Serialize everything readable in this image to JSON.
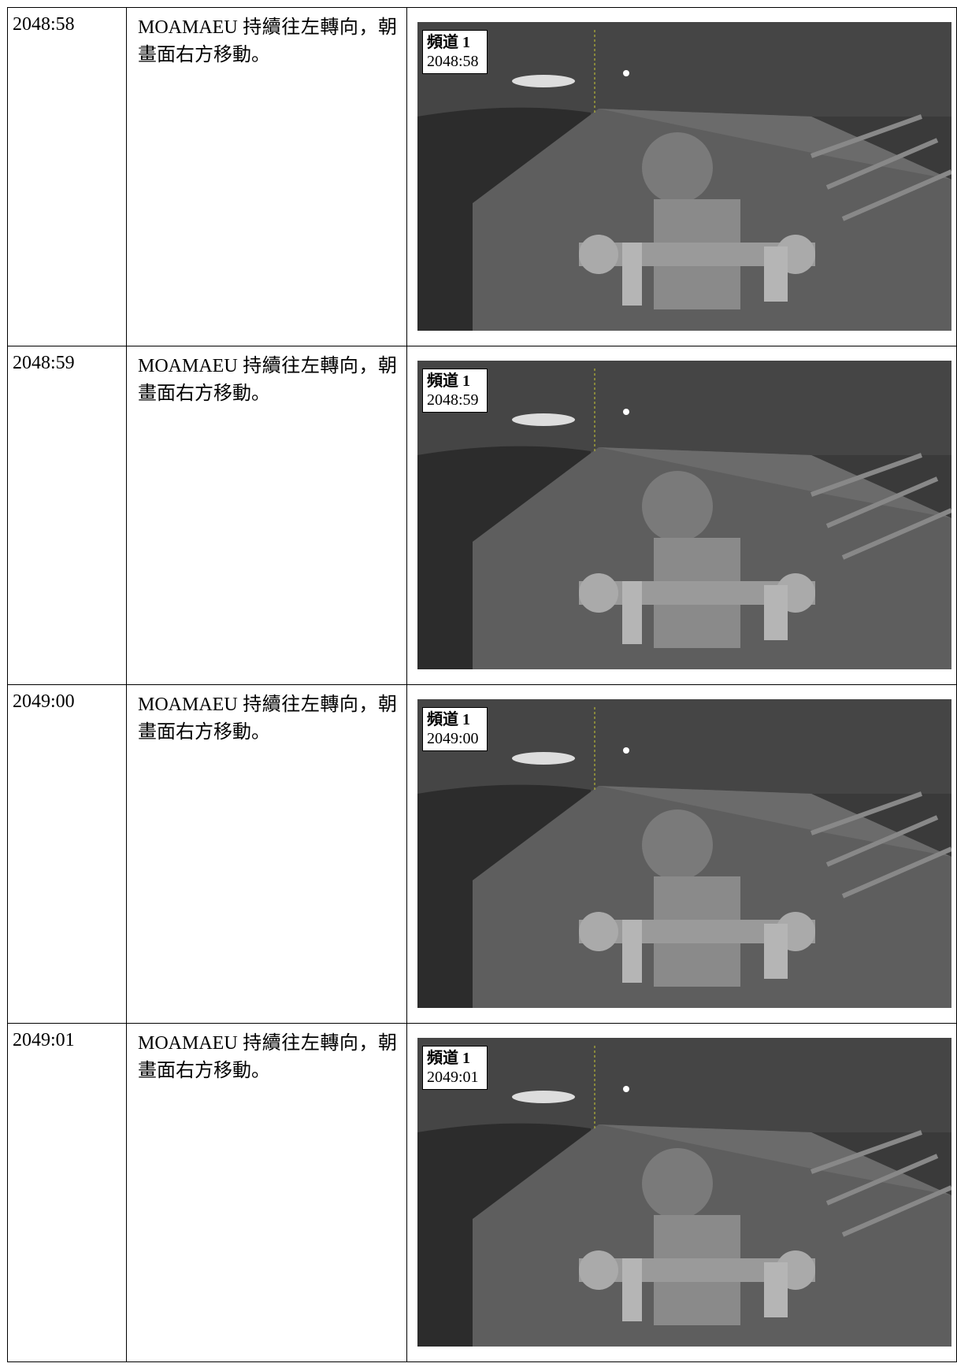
{
  "table": {
    "rows": [
      {
        "time": "2048:58",
        "description": "MOAMAEU 持續往左轉向，朝畫面右方移動。",
        "image": {
          "channel": "頻道 1",
          "timestamp": "2048:58"
        }
      },
      {
        "time": "2048:59",
        "description": "MOAMAEU 持續往左轉向，朝畫面右方移動。",
        "image": {
          "channel": "頻道 1",
          "timestamp": "2048:59"
        }
      },
      {
        "time": "2049:00",
        "description": "MOAMAEU 持續往左轉向，朝畫面右方移動。",
        "image": {
          "channel": "頻道 1",
          "timestamp": "2049:00"
        }
      },
      {
        "time": "2049:01",
        "description": "MOAMAEU 持續往左轉向，朝畫面右方移動。",
        "image": {
          "channel": "頻道 1",
          "timestamp": "2049:01"
        }
      }
    ]
  }
}
